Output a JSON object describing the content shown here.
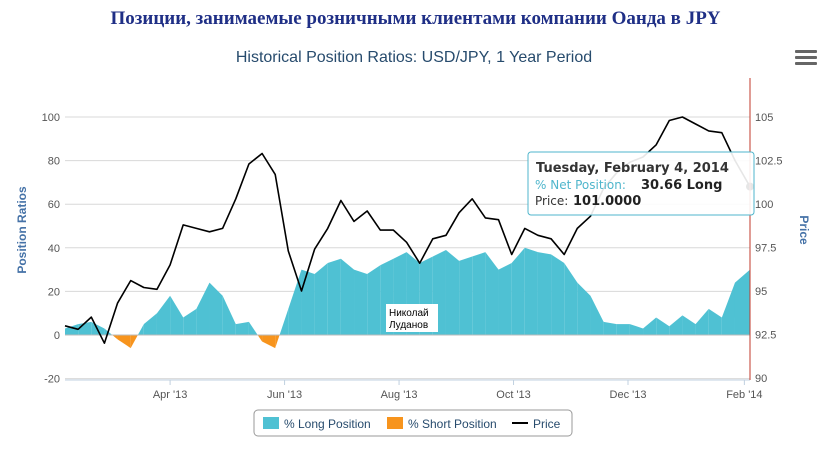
{
  "heading": "Позиции, занимаемые розничными клиентами компании Оанда в JPY",
  "chart_data": {
    "type": "area",
    "title": "Historical Position Ratios: USD/JPY, 1 Year Period",
    "ylabel_left": "Position Ratios",
    "ylabel_right": "Price",
    "left_ticks": [
      -20,
      0,
      20,
      40,
      60,
      80,
      100
    ],
    "right_ticks": [
      "90",
      "92.5",
      "95",
      "97.5",
      "100",
      "102.5",
      "105"
    ],
    "x_ticks": [
      "Apr '13",
      "Jun '13",
      "Aug '13",
      "Oct '13",
      "Dec '13",
      "Feb '14"
    ],
    "legend": [
      "% Long Position",
      "% Short Position",
      "Price"
    ],
    "colors": {
      "long": "#4fc1d3",
      "short": "#f7941d",
      "price": "#000000"
    },
    "watermark": "Николай\nЛуданов",
    "x_dates": [
      "2013-02-04",
      "2013-02-11",
      "2013-02-18",
      "2013-02-25",
      "2013-03-04",
      "2013-03-11",
      "2013-03-18",
      "2013-03-25",
      "2013-04-01",
      "2013-04-08",
      "2013-04-15",
      "2013-04-22",
      "2013-04-29",
      "2013-05-06",
      "2013-05-13",
      "2013-05-20",
      "2013-05-27",
      "2013-06-03",
      "2013-06-10",
      "2013-06-17",
      "2013-06-24",
      "2013-07-01",
      "2013-07-08",
      "2013-07-15",
      "2013-07-22",
      "2013-07-29",
      "2013-08-05",
      "2013-08-12",
      "2013-08-19",
      "2013-08-26",
      "2013-09-02",
      "2013-09-09",
      "2013-09-16",
      "2013-09-23",
      "2013-09-30",
      "2013-10-07",
      "2013-10-14",
      "2013-10-21",
      "2013-10-28",
      "2013-11-04",
      "2013-11-11",
      "2013-11-18",
      "2013-11-25",
      "2013-12-02",
      "2013-12-09",
      "2013-12-16",
      "2013-12-23",
      "2013-12-30",
      "2014-01-06",
      "2014-01-13",
      "2014-01-20",
      "2014-01-27",
      "2014-02-04"
    ],
    "series": [
      {
        "name": "% Long Position",
        "values": [
          3,
          5,
          6,
          3,
          -2,
          -6,
          5,
          10,
          18,
          8,
          12,
          24,
          18,
          5,
          6,
          -3,
          -6,
          12,
          30,
          28,
          33,
          35,
          30,
          28,
          32,
          35,
          38,
          33,
          36,
          39,
          34,
          36,
          38,
          30,
          33,
          40,
          38,
          37,
          33,
          24,
          18,
          6,
          5,
          5,
          3,
          8,
          4,
          9,
          5,
          12,
          8,
          24,
          30
        ]
      },
      {
        "name": "Price",
        "values": [
          93.0,
          92.8,
          93.5,
          92.0,
          94.3,
          95.6,
          95.2,
          95.1,
          96.5,
          98.8,
          98.6,
          98.4,
          98.6,
          100.3,
          102.3,
          102.9,
          101.7,
          97.3,
          95.0,
          97.4,
          98.6,
          100.2,
          99.0,
          99.6,
          98.5,
          98.5,
          97.8,
          96.6,
          98.0,
          98.2,
          99.5,
          100.3,
          99.2,
          99.1,
          97.1,
          98.6,
          98.2,
          98.0,
          97.1,
          98.6,
          99.3,
          100.9,
          101.8,
          102.4,
          102.7,
          103.4,
          104.8,
          105.0,
          104.6,
          104.2,
          104.1,
          102.5,
          101.0
        ]
      }
    ],
    "tooltip": {
      "date": "Tuesday, February 4, 2014",
      "net_label": "% Net Position:",
      "net_value": "30.66 Long",
      "price_label": "Price:",
      "price_value": "101.0000"
    },
    "grid": true,
    "legend_position": "bottom-center"
  }
}
